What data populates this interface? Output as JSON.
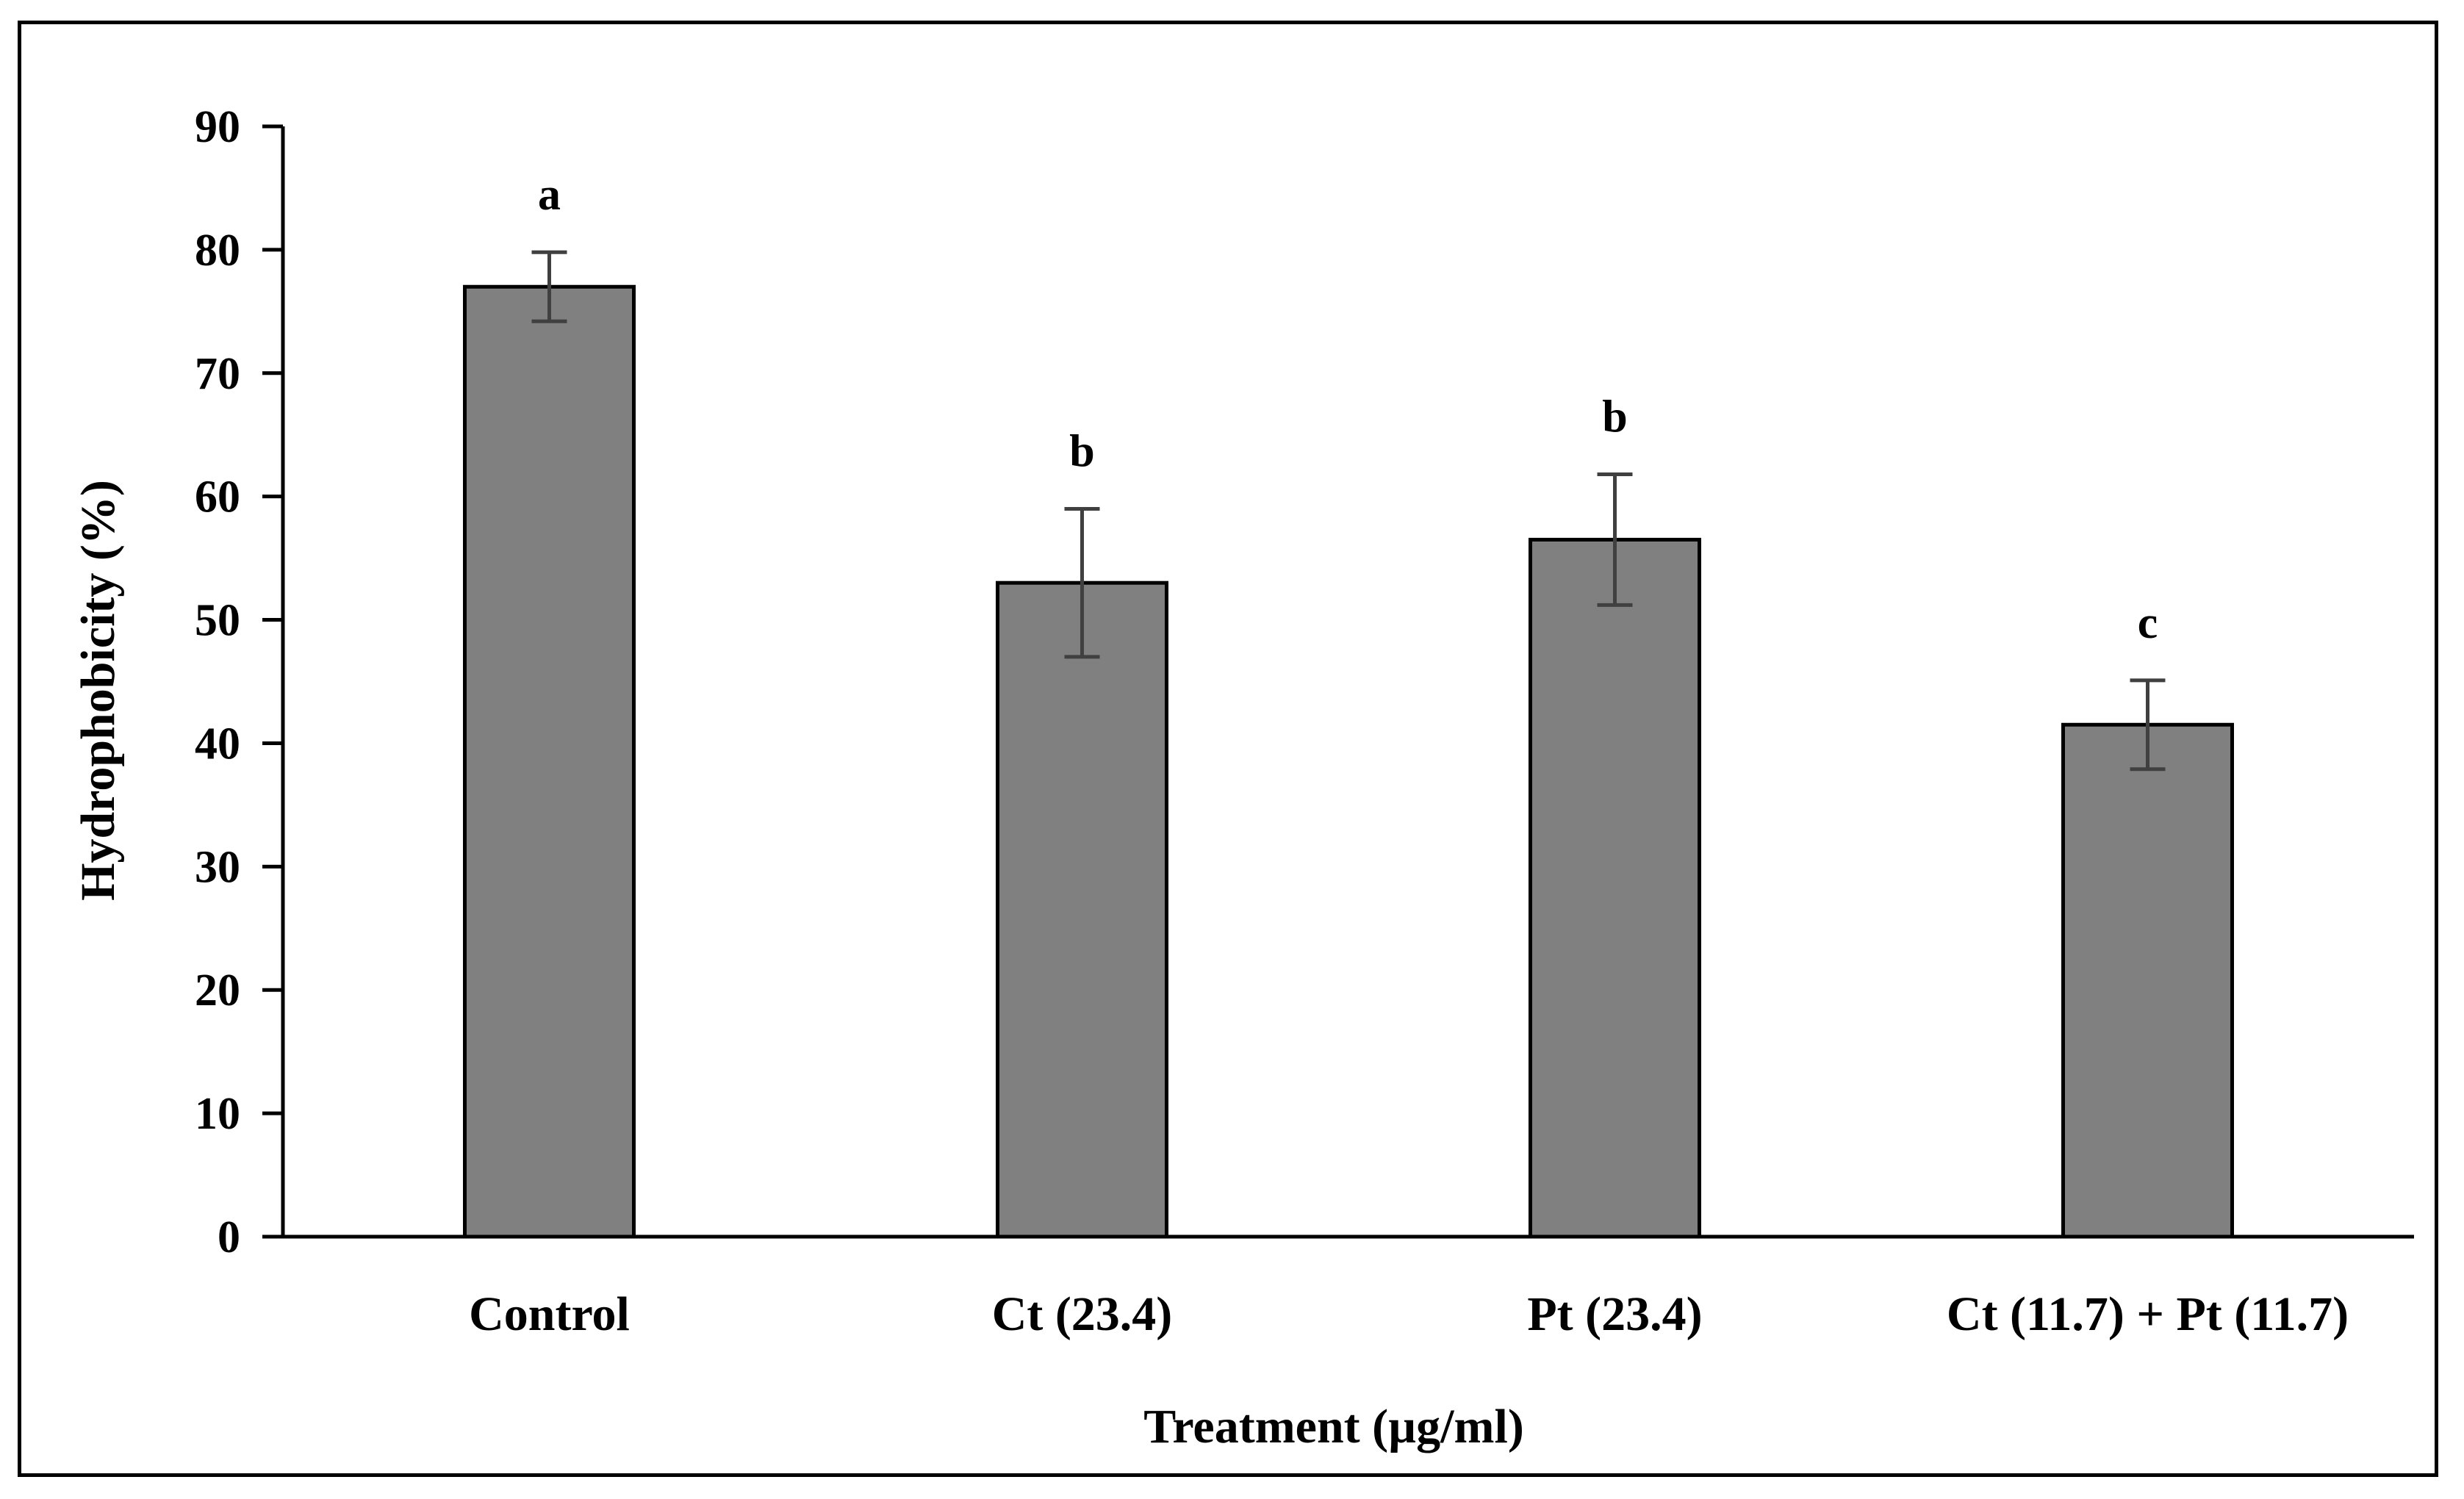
{
  "chart_data": {
    "type": "bar",
    "title": "",
    "xlabel": "Treatment  (µg/ml)",
    "ylabel": "Hydrophobicity  (%)",
    "ylim": [
      0,
      90
    ],
    "yticks": [
      0,
      10,
      20,
      30,
      40,
      50,
      60,
      70,
      80,
      90
    ],
    "categories": [
      "Control",
      "Ct (23.4)",
      "Pt (23.4)",
      "Ct (11.7) + Pt (11.7)"
    ],
    "values": [
      77,
      53,
      56.5,
      41.5
    ],
    "errors": [
      2.8,
      6,
      5.3,
      3.6
    ],
    "significance": [
      "a",
      "b",
      "b",
      "c"
    ],
    "grid": false,
    "colors": {
      "bar": "#808080",
      "bar_edge": "#000000",
      "error_bar": "#404040",
      "axis": "#000000"
    }
  }
}
